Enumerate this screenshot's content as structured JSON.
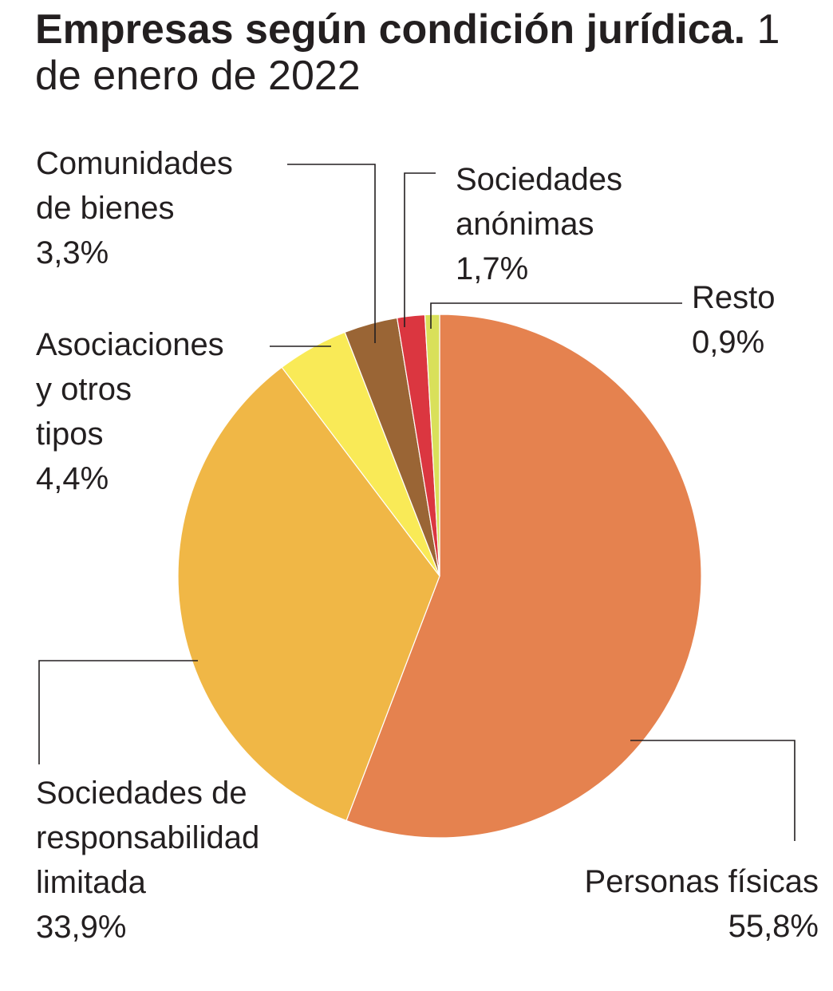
{
  "title": {
    "bold": "Empresas según condición jurídica.",
    "regular": "1 de enero de 2022"
  },
  "chart_data": {
    "type": "pie",
    "slices": [
      {
        "lines": [
          "Personas físicas"
        ],
        "value": 55.8,
        "value_label": "55,8%",
        "color": "#e5824f"
      },
      {
        "lines": [
          "Sociedades de",
          "responsabilidad",
          "limitada"
        ],
        "value": 33.9,
        "value_label": "33,9%",
        "color": "#f0b746"
      },
      {
        "lines": [
          "Asociaciones",
          "y otros",
          "tipos"
        ],
        "value": 4.4,
        "value_label": "4,4%",
        "color": "#f9ea57"
      },
      {
        "lines": [
          "Comunidades",
          "de bienes"
        ],
        "value": 3.3,
        "value_label": "3,3%",
        "color": "#9a6535"
      },
      {
        "lines": [
          "Sociedades",
          "anónimas"
        ],
        "value": 1.7,
        "value_label": "1,7%",
        "color": "#db3640"
      },
      {
        "lines": [
          "Resto"
        ],
        "value": 0.9,
        "value_label": "0,9%",
        "color": "#d9e05a"
      }
    ]
  }
}
